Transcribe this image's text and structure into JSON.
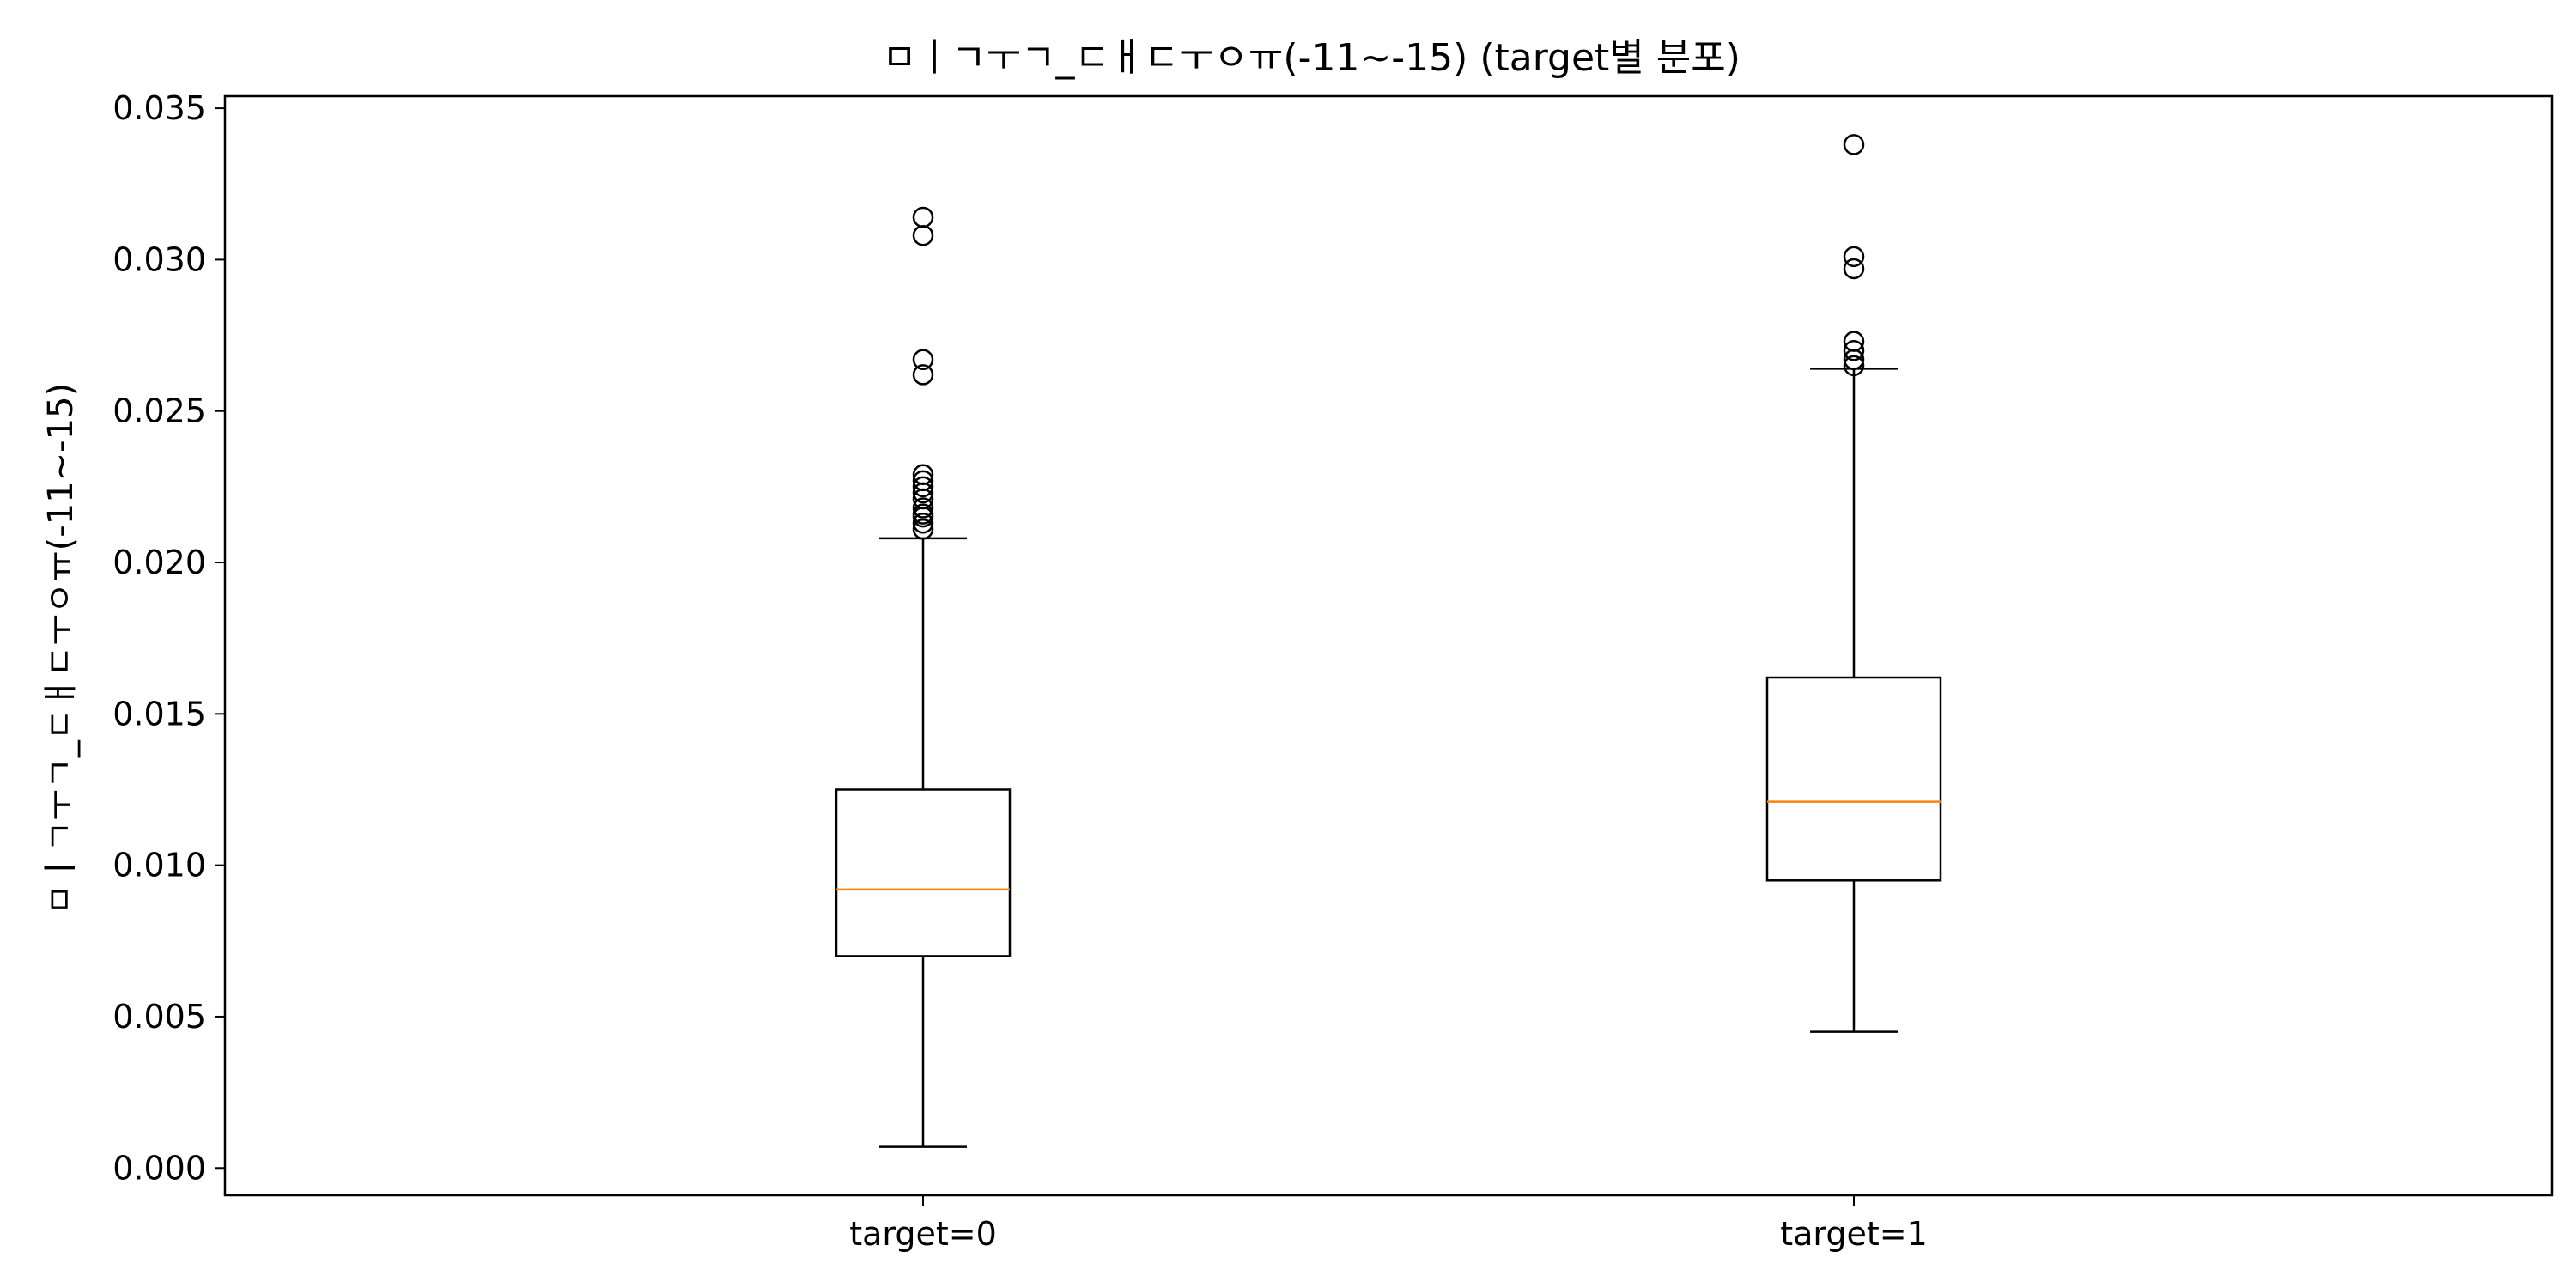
{
  "chart_data": {
    "type": "box",
    "title": "ㅁㅣㄱㅜㄱ_ㄷㅐㄷㅜㅇㅠ(-11~-15) (target별 분포)",
    "ylabel": "ㅁㅣㄱㅜㄱ_ㄷㅐㄷㅜㅇㅠ(-11~-15)",
    "xlabel": "",
    "ylim": [
      -0.0009,
      0.0354
    ],
    "yticks": [
      0.0,
      0.005,
      0.01,
      0.015,
      0.02,
      0.025,
      0.03,
      0.035
    ],
    "ytick_labels": [
      "0.000",
      "0.005",
      "0.010",
      "0.015",
      "0.020",
      "0.025",
      "0.030",
      "0.035"
    ],
    "grid": false,
    "colors": {
      "box": "#000000",
      "median": "#ff7f0e"
    },
    "categories": [
      "target=0",
      "target=1"
    ],
    "boxes": [
      {
        "label": "target=0",
        "whisker_low": 0.0007,
        "q1": 0.007,
        "median": 0.0092,
        "q3": 0.0125,
        "whisker_high": 0.0208,
        "outliers": [
          0.0211,
          0.0213,
          0.0215,
          0.0216,
          0.0218,
          0.0221,
          0.0223,
          0.0225,
          0.0227,
          0.0229,
          0.0262,
          0.0267,
          0.0308,
          0.0314
        ]
      },
      {
        "label": "target=1",
        "whisker_low": 0.0045,
        "q1": 0.0095,
        "median": 0.0121,
        "q3": 0.0162,
        "whisker_high": 0.0264,
        "outliers": [
          0.0265,
          0.0267,
          0.027,
          0.0273,
          0.0297,
          0.0301,
          0.0338
        ]
      }
    ]
  }
}
